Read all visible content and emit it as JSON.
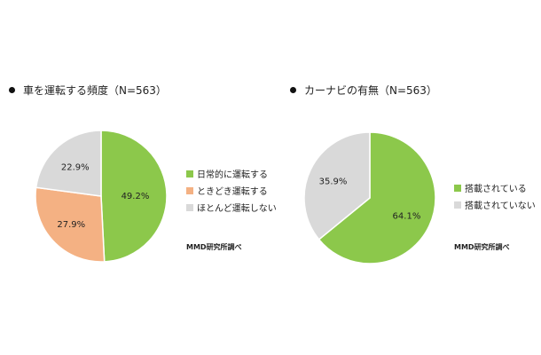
{
  "credit": "MMD研究所調べ",
  "colors": {
    "green": "#8cc84b",
    "orange": "#f4b183",
    "gray": "#d9d9d9"
  },
  "chart_data": [
    {
      "type": "pie",
      "title": "車を運転する頻度（N=563）",
      "categories": [
        "日常的に運転する",
        "ときどき運転する",
        "ほとんど運転しない"
      ],
      "values": [
        49.2,
        27.9,
        22.9
      ],
      "labels": [
        "49.2%",
        "27.9%",
        "22.9%"
      ],
      "legend_placement": "right"
    },
    {
      "type": "pie",
      "title": "カーナビの有無（N=563）",
      "categories": [
        "搭載されている",
        "搭載されていない"
      ],
      "values": [
        64.1,
        35.9
      ],
      "labels": [
        "64.1%",
        "35.9%"
      ],
      "legend_placement": "right"
    }
  ]
}
